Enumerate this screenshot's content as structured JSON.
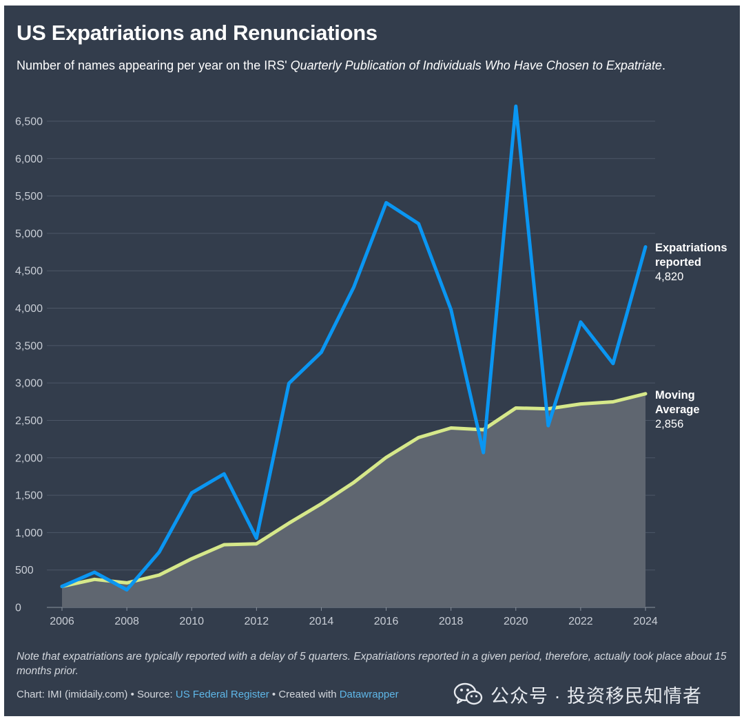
{
  "title": "US Expatriations and Renunciations",
  "subtitle": {
    "prefix": "Number of names appearing per year on the IRS' ",
    "italic": "Quarterly Publication of Individuals Who Have Chosen to Expatriate",
    "suffix": "."
  },
  "note": "Note that expatriations are typically reported with a delay of 5 quarters. Expatriations reported in a given period, therefore, actually took place about 15 months prior.",
  "credits": {
    "chart_prefix": "Chart: IMI (imidaily.com) • Source: ",
    "source_link": "US Federal Register",
    "mid": " • Created with ",
    "tool_link": "Datawrapper"
  },
  "watermark": "公众号 · 投资移民知情者",
  "colors": {
    "background": "#333d4c",
    "expatriations": "#0a96f2",
    "moving_average": "#d6e88a",
    "area_fill": "#5f6670",
    "grid": "#4d5767",
    "tick_text": "#c9ced6"
  },
  "chart_data": {
    "type": "line",
    "x": [
      2006,
      2007,
      2008,
      2009,
      2010,
      2011,
      2012,
      2013,
      2014,
      2015,
      2016,
      2017,
      2018,
      2019,
      2020,
      2021,
      2022,
      2023,
      2024
    ],
    "series": [
      {
        "name": "Expatriations reported",
        "label_lines": [
          "Expatriations",
          "reported"
        ],
        "value_label": "4,820",
        "values": [
          280,
          470,
          235,
          740,
          1530,
          1785,
          925,
          2995,
          3410,
          4280,
          5410,
          5130,
          3980,
          2070,
          6700,
          2430,
          3815,
          3260,
          4820
        ]
      },
      {
        "name": "Moving Average",
        "label_lines": [
          "Moving",
          "Average"
        ],
        "value_label": "2,856",
        "area": true,
        "values": [
          280,
          375,
          328,
          433,
          650,
          838,
          850,
          1126,
          1385,
          1670,
          2005,
          2270,
          2398,
          2375,
          2665,
          2655,
          2720,
          2748,
          2856
        ]
      }
    ],
    "xticks": [
      2006,
      2008,
      2010,
      2012,
      2014,
      2016,
      2018,
      2020,
      2022,
      2024
    ],
    "xtick_labels": [
      "2006",
      "2008",
      "2010",
      "2012",
      "2014",
      "2016",
      "2018",
      "2020",
      "2022",
      "2024"
    ],
    "yticks": [
      0,
      500,
      1000,
      1500,
      2000,
      2500,
      3000,
      3500,
      4000,
      4500,
      5000,
      5500,
      6000,
      6500
    ],
    "ytick_labels": [
      "0",
      "500",
      "1,000",
      "1,500",
      "2,000",
      "2,500",
      "3,000",
      "3,500",
      "4,000",
      "4,500",
      "5,000",
      "5,500",
      "6,000",
      "6,500"
    ],
    "ylim": [
      0,
      6500
    ],
    "xlim": [
      2006,
      2024
    ],
    "grid": true
  }
}
